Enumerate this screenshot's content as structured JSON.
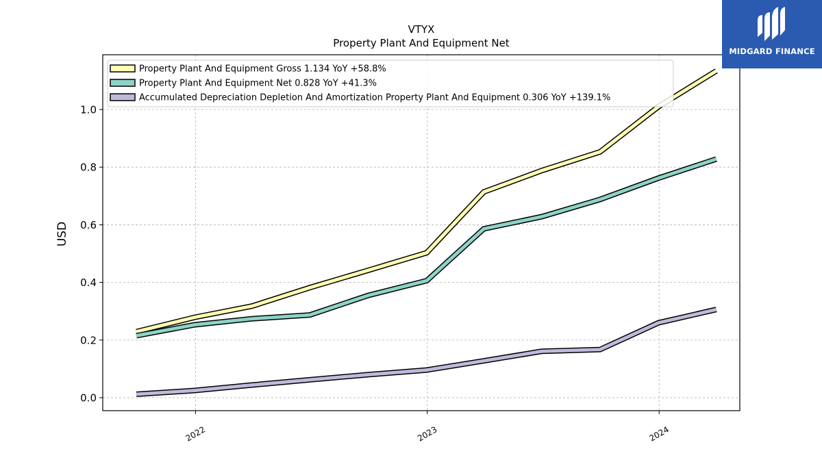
{
  "brand": {
    "name": "MIDGARD FINANCE",
    "background": "#2a5bb0"
  },
  "chart_data": {
    "type": "line",
    "title": "VTYX",
    "subtitle": "Property Plant And Equipment Net",
    "ylabel": "USD",
    "xlabel": "",
    "ylim": [
      -0.045,
      1.19
    ],
    "yticks": [
      0.0,
      0.2,
      0.4,
      0.6,
      0.8,
      1.0
    ],
    "ytick_labels": [
      "0.0",
      "0.2",
      "0.4",
      "0.6",
      "0.8",
      "1.0"
    ],
    "xlim": [
      "2021-08-08",
      "2024-05-07"
    ],
    "xticks": [
      "2022-01-01",
      "2023-01-01",
      "2024-01-01"
    ],
    "xtick_labels": [
      "2022",
      "2023",
      "2024"
    ],
    "grid": true,
    "legend_position": "top-left",
    "x": [
      "2021-09-30",
      "2021-12-31",
      "2022-03-31",
      "2022-06-30",
      "2022-09-30",
      "2022-12-31",
      "2023-03-31",
      "2023-06-30",
      "2023-09-30",
      "2023-12-31",
      "2024-03-31"
    ],
    "series": [
      {
        "name": "Property Plant And Equipment Gross",
        "legend_label": "Property Plant And Equipment Gross  1.134 YoY +58.8%",
        "color": "#ffffb3",
        "values": [
          0.229,
          0.279,
          0.318,
          0.382,
          0.442,
          0.503,
          0.714,
          0.788,
          0.853,
          1.01,
          1.134
        ]
      },
      {
        "name": "Property Plant And Equipment Net",
        "legend_label": "Property Plant And Equipment Net  0.828 YoY +41.3%",
        "color": "#8dd3c7",
        "values": [
          0.215,
          0.253,
          0.274,
          0.287,
          0.355,
          0.406,
          0.586,
          0.628,
          0.688,
          0.762,
          0.828
        ]
      },
      {
        "name": "Accumulated Depreciation Depletion And Amortization Property Plant And Equipment",
        "legend_label": "Accumulated Depreciation Depletion And Amortization Property Plant And Equipment  0.306 YoY +139.1%",
        "color": "#bebada",
        "values": [
          0.012,
          0.025,
          0.044,
          0.062,
          0.08,
          0.096,
          0.128,
          0.161,
          0.167,
          0.26,
          0.306
        ]
      }
    ]
  }
}
